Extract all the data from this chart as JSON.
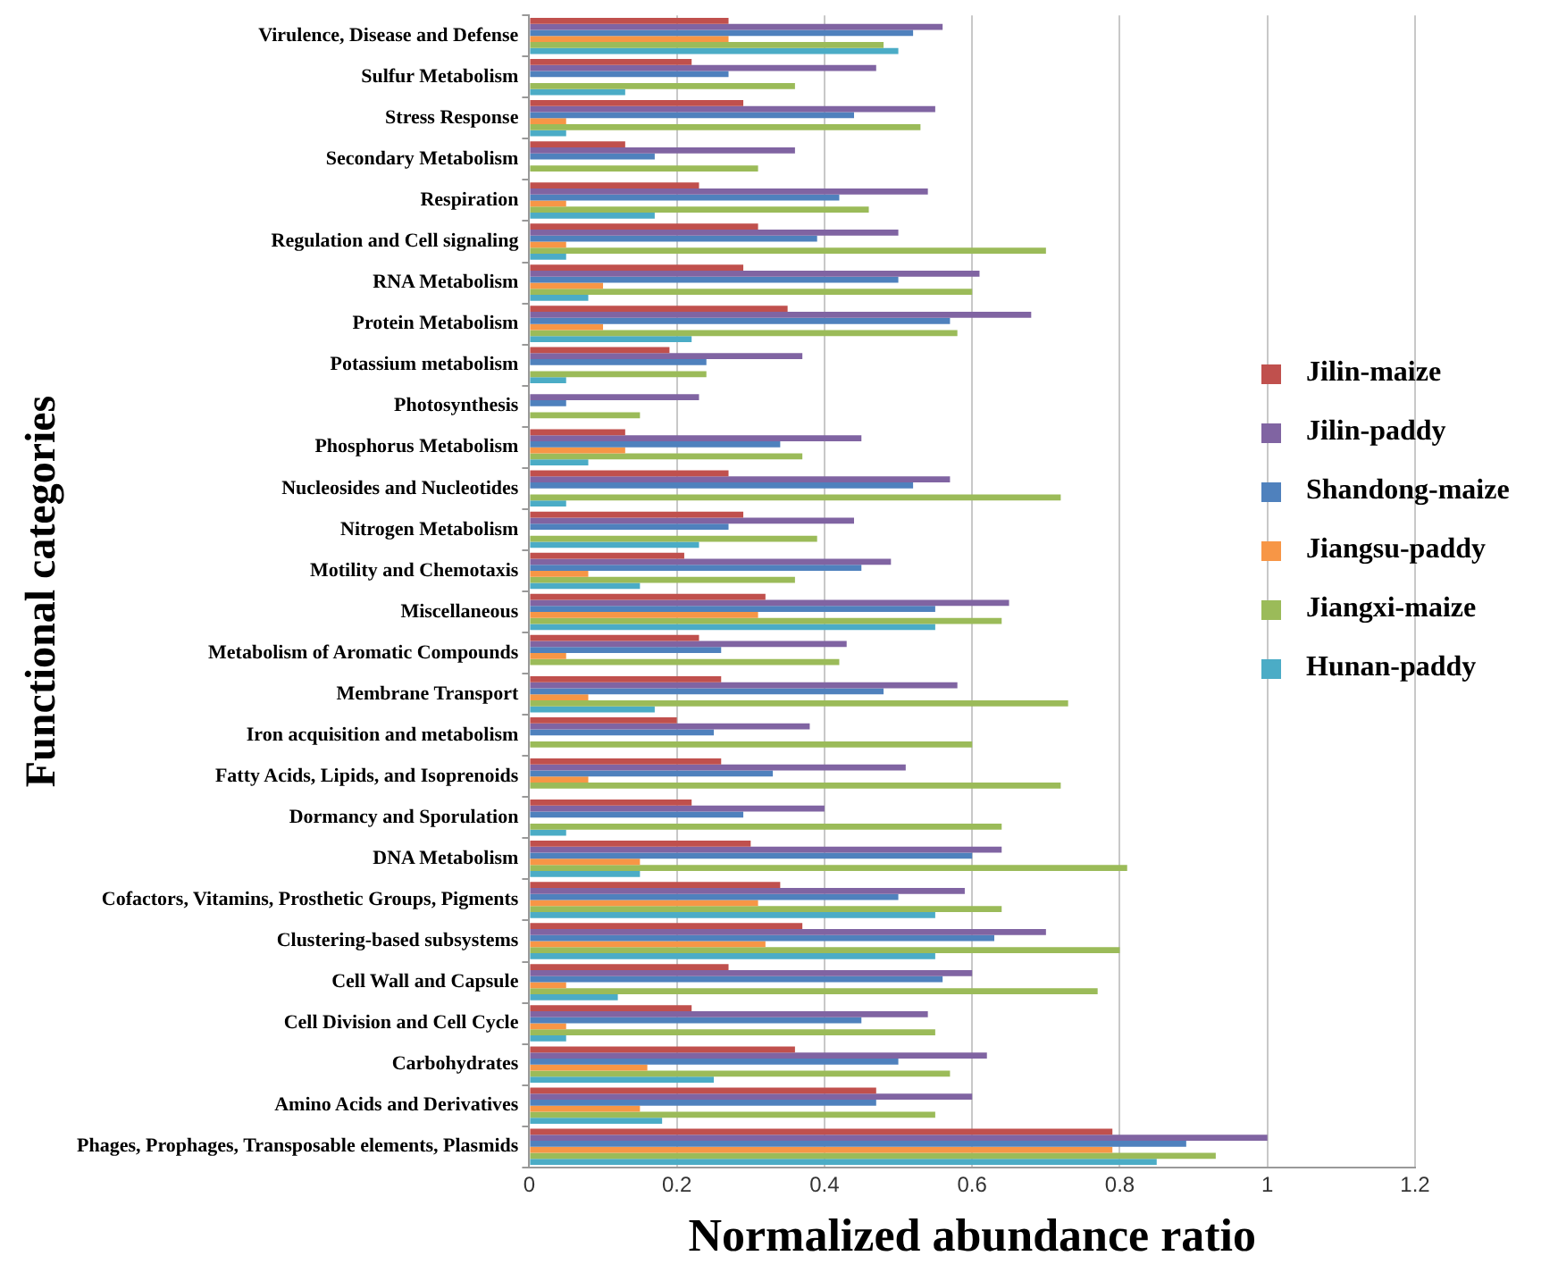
{
  "chart_data": {
    "type": "bar",
    "orientation": "horizontal",
    "xlabel": "Normalized abundance ratio",
    "ylabel": "Functional categories",
    "categories": [
      "Virulence, Disease and Defense",
      "Sulfur Metabolism",
      "Stress Response",
      "Secondary Metabolism",
      "Respiration",
      "Regulation and Cell signaling",
      "RNA Metabolism",
      "Protein Metabolism",
      "Potassium metabolism",
      "Photosynthesis",
      "Phosphorus Metabolism",
      "Nucleosides and Nucleotides",
      "Nitrogen Metabolism",
      "Motility and Chemotaxis",
      "Miscellaneous",
      "Metabolism of Aromatic Compounds",
      "Membrane Transport",
      "Iron acquisition and metabolism",
      "Fatty Acids, Lipids, and Isoprenoids",
      "Dormancy and Sporulation",
      "DNA Metabolism",
      "Cofactors, Vitamins, Prosthetic Groups, Pigments",
      "Clustering-based subsystems",
      "Cell Wall and Capsule",
      "Cell Division and Cell Cycle",
      "Carbohydrates",
      "Amino Acids and Derivatives",
      "Phages, Prophages, Transposable elements, Plasmids"
    ],
    "series": [
      {
        "name": "Jilin-maize",
        "color": "#c0504d",
        "values": [
          0.27,
          0.22,
          0.29,
          0.13,
          0.23,
          0.31,
          0.29,
          0.35,
          0.19,
          null,
          0.13,
          0.27,
          0.29,
          0.21,
          0.32,
          0.23,
          0.26,
          0.2,
          0.26,
          0.22,
          0.3,
          0.34,
          0.37,
          0.27,
          0.22,
          0.36,
          0.47,
          0.79
        ]
      },
      {
        "name": "Jilin-paddy",
        "color": "#8064a2",
        "values": [
          0.56,
          0.47,
          0.55,
          0.36,
          0.54,
          0.5,
          0.61,
          0.68,
          0.37,
          0.23,
          0.45,
          0.57,
          0.44,
          0.49,
          0.65,
          0.43,
          0.58,
          0.38,
          0.51,
          0.4,
          0.64,
          0.59,
          0.7,
          0.6,
          0.54,
          0.62,
          0.6,
          1.0
        ]
      },
      {
        "name": "Shandong-maize",
        "color": "#4f81bd",
        "values": [
          0.52,
          0.27,
          0.44,
          0.17,
          0.42,
          0.39,
          0.5,
          0.57,
          0.24,
          0.05,
          0.34,
          0.52,
          0.27,
          0.45,
          0.55,
          0.26,
          0.48,
          0.25,
          0.33,
          0.29,
          0.6,
          0.5,
          0.63,
          0.56,
          0.45,
          0.5,
          0.47,
          0.89
        ]
      },
      {
        "name": "Jiangsu-paddy",
        "color": "#f79646",
        "values": [
          0.27,
          null,
          0.05,
          null,
          0.05,
          0.05,
          0.1,
          0.1,
          null,
          null,
          0.13,
          null,
          null,
          0.08,
          0.31,
          0.05,
          0.08,
          null,
          0.08,
          null,
          0.15,
          0.31,
          0.32,
          0.05,
          0.05,
          0.16,
          0.15,
          0.79
        ]
      },
      {
        "name": "Jiangxi-maize",
        "color": "#9bbb59",
        "values": [
          0.48,
          0.36,
          0.53,
          0.31,
          0.46,
          0.7,
          0.6,
          0.58,
          0.24,
          0.15,
          0.37,
          0.72,
          0.39,
          0.36,
          0.64,
          0.42,
          0.73,
          0.6,
          0.72,
          0.64,
          0.81,
          0.64,
          0.8,
          0.77,
          0.55,
          0.57,
          0.55,
          0.93
        ]
      },
      {
        "name": "Hunan-paddy",
        "color": "#4bacc6",
        "values": [
          0.5,
          0.13,
          0.05,
          null,
          0.17,
          0.05,
          0.08,
          0.22,
          0.05,
          null,
          0.08,
          0.05,
          0.23,
          0.15,
          0.55,
          null,
          0.17,
          null,
          null,
          0.05,
          0.15,
          0.55,
          0.55,
          0.12,
          0.05,
          0.25,
          0.18,
          0.85
        ]
      }
    ],
    "xlim": [
      0,
      1.2
    ],
    "xticks": [
      0,
      0.2,
      0.4,
      0.6,
      0.8,
      1,
      1.2
    ],
    "grid": "x",
    "legend": "right"
  }
}
